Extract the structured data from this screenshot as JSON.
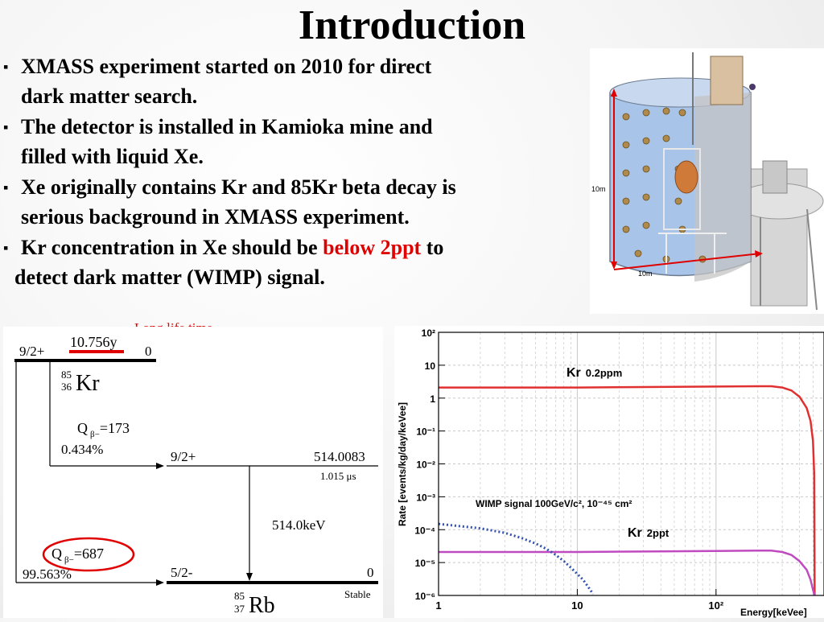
{
  "slide": {
    "title": "Introduction",
    "bullets": [
      {
        "lines": [
          "XMASS experiment started on 2010 for direct",
          "dark matter  search."
        ]
      },
      {
        "lines": [
          "The detector is installed in Kamioka mine and",
          "filled with  liquid Xe."
        ]
      },
      {
        "lines": [
          "Xe originally contains Kr and 85Kr beta decay is",
          "serious background in XMASS experiment."
        ]
      },
      {
        "pre": "Kr concentration in Xe should be ",
        "highlight": "below 2ppt",
        "post": " to",
        "line2": "detect dark matter (WIMP) signal."
      }
    ]
  },
  "detector_figure": {
    "dim_vertical": "10m",
    "dim_horizontal": "10m"
  },
  "decay_scheme": {
    "annotation": "Long life time",
    "parent": {
      "spin": "9/2+",
      "halflife": "10.756y",
      "energy": "0",
      "mass": "85",
      "z": "36",
      "symbol": "Kr"
    },
    "branch1": {
      "q_label": "Q",
      "q_sub": "β−",
      "q_value": "=173",
      "ratio": "0.434%"
    },
    "level1": {
      "spin": "9/2+",
      "energy": "514.0083",
      "halflife": "1.015 μs"
    },
    "gamma": "514.0keV",
    "branch2": {
      "q_label": "Q",
      "q_sub": "β−",
      "q_value": "=687",
      "ratio": "99.563%"
    },
    "ground": {
      "spin": "5/2-",
      "energy": "0",
      "mass": "85",
      "z": "37",
      "symbol": "Rb",
      "note": "Stable"
    }
  },
  "colors": {
    "highlight": "#e00000",
    "kr_ppm": "#e03030",
    "kr_ppt": "#c04bc0",
    "wimp": "#3050b0"
  },
  "chart_data": {
    "type": "line",
    "title": "",
    "xlabel": "Energy[keVee]",
    "ylabel": "Rate [events/kg/day/keVee]",
    "xscale": "log",
    "yscale": "log",
    "xlim": [
      1,
      600
    ],
    "ylim": [
      1e-06,
      100
    ],
    "grid": true,
    "x_ticks": [
      "1",
      "10",
      "10²"
    ],
    "y_ticks": [
      "10²",
      "10",
      "1",
      "10⁻¹",
      "10⁻²",
      "10⁻³",
      "10⁻⁴",
      "10⁻⁵",
      "10⁻⁶"
    ],
    "annotations": [
      {
        "text_main": "Kr",
        "text_sub": "0.2ppm"
      },
      {
        "text_main": "Kr",
        "text_sub": "2ppt"
      },
      {
        "text_main": "WIMP signal 100GeV/c², 10⁻⁴⁵ cm²"
      }
    ],
    "series": [
      {
        "key": "kr_ppm",
        "style": "solid",
        "x": [
          1,
          10,
          50,
          100,
          200,
          250,
          300,
          350,
          400,
          450,
          480,
          500,
          510,
          514
        ],
        "y": [
          2.1,
          2.1,
          2.2,
          2.25,
          2.3,
          2.3,
          2.1,
          1.7,
          1.1,
          0.5,
          0.2,
          0.05,
          0.005,
          1e-06
        ]
      },
      {
        "key": "kr_ppt",
        "style": "solid",
        "x": [
          1,
          10,
          50,
          100,
          200,
          250,
          300,
          350,
          400,
          450,
          480,
          500,
          510,
          514
        ],
        "y": [
          2.1e-05,
          2.1e-05,
          2.2e-05,
          2.25e-05,
          2.3e-05,
          2.3e-05,
          2.1e-05,
          1.7e-05,
          1.1e-05,
          6e-06,
          3e-06,
          1.5e-06,
          1.1e-06,
          1e-06
        ]
      },
      {
        "key": "wimp",
        "style": "dotted",
        "x": [
          1,
          2,
          3,
          4,
          5,
          6,
          7,
          8,
          9,
          10,
          11,
          12,
          13
        ],
        "y": [
          0.00015,
          0.00011,
          8e-05,
          5.5e-05,
          3.8e-05,
          2.6e-05,
          1.7e-05,
          1.1e-05,
          7e-06,
          4.5e-06,
          3e-06,
          1.8e-06,
          1.1e-06
        ]
      }
    ]
  }
}
